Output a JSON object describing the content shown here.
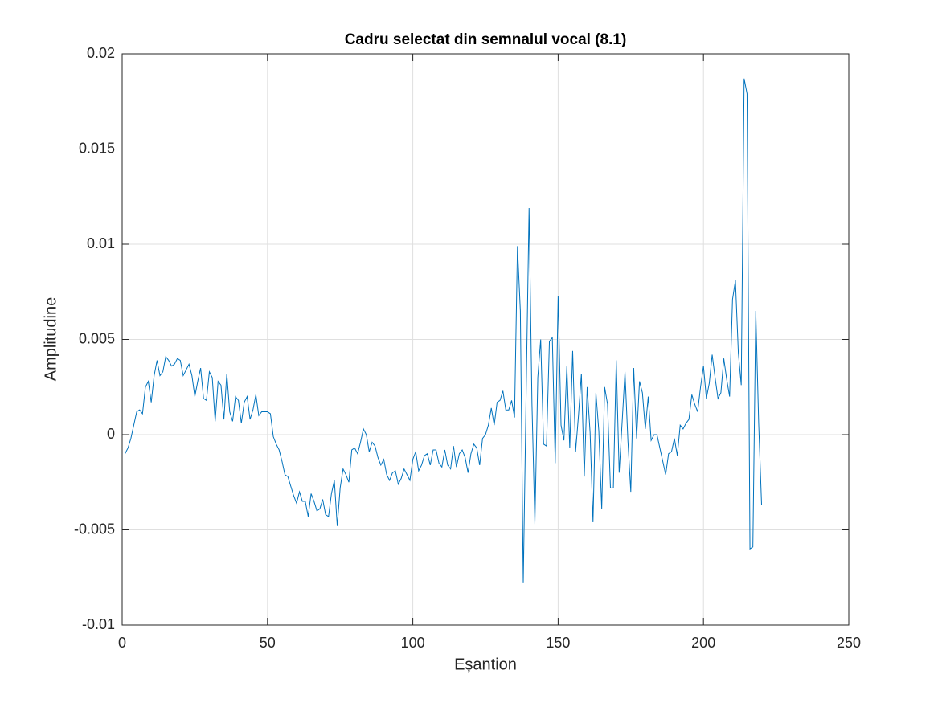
{
  "chart_data": {
    "type": "line",
    "title": "Cadru selectat din semnalul vocal (8.1)",
    "x_label": "Eșantion",
    "y_label": "Amplitudine",
    "x": [
      1,
      2,
      3,
      4,
      5,
      6,
      7,
      8,
      9,
      10,
      11,
      12,
      13,
      14,
      15,
      16,
      17,
      18,
      19,
      20,
      21,
      22,
      23,
      24,
      25,
      26,
      27,
      28,
      29,
      30,
      31,
      32,
      33,
      34,
      35,
      36,
      37,
      38,
      39,
      40,
      41,
      42,
      43,
      44,
      45,
      46,
      47,
      48,
      49,
      50,
      51,
      52,
      53,
      54,
      55,
      56,
      57,
      58,
      59,
      60,
      61,
      62,
      63,
      64,
      65,
      66,
      67,
      68,
      69,
      70,
      71,
      72,
      73,
      74,
      75,
      76,
      77,
      78,
      79,
      80,
      81,
      82,
      83,
      84,
      85,
      86,
      87,
      88,
      89,
      90,
      91,
      92,
      93,
      94,
      95,
      96,
      97,
      98,
      99,
      100,
      101,
      102,
      103,
      104,
      105,
      106,
      107,
      108,
      109,
      110,
      111,
      112,
      113,
      114,
      115,
      116,
      117,
      118,
      119,
      120,
      121,
      122,
      123,
      124,
      125,
      126,
      127,
      128,
      129,
      130,
      131,
      132,
      133,
      134,
      135,
      136,
      137,
      138,
      139,
      140,
      141,
      142,
      143,
      144,
      145,
      146,
      147,
      148,
      149,
      150,
      151,
      152,
      153,
      154,
      155,
      156,
      157,
      158,
      159,
      160,
      161,
      162,
      163,
      164,
      165,
      166,
      167,
      168,
      169,
      170,
      171,
      172,
      173,
      174,
      175,
      176,
      177,
      178,
      179,
      180,
      181,
      182,
      183,
      184,
      185,
      186,
      187,
      188,
      189,
      190,
      191,
      192,
      193,
      194,
      195,
      196,
      197,
      198,
      199,
      200,
      201,
      202,
      203,
      204,
      205,
      206,
      207,
      208,
      209,
      210,
      211,
      212,
      213,
      214,
      215,
      216,
      217,
      218,
      219,
      220
    ],
    "values": [
      -0.001,
      -0.0007,
      -0.0002,
      0.0005,
      0.0012,
      0.0013,
      0.0011,
      0.0025,
      0.0028,
      0.0017,
      0.0031,
      0.0039,
      0.0031,
      0.0033,
      0.0041,
      0.0039,
      0.0036,
      0.0037,
      0.004,
      0.0039,
      0.0031,
      0.0034,
      0.0037,
      0.0031,
      0.002,
      0.0028,
      0.0035,
      0.0019,
      0.0018,
      0.0033,
      0.003,
      0.0007,
      0.0028,
      0.0026,
      0.0008,
      0.0032,
      0.0012,
      0.0007,
      0.002,
      0.0018,
      0.0006,
      0.0017,
      0.002,
      0.0008,
      0.0013,
      0.0021,
      0.001,
      0.0012,
      0.0012,
      0.0012,
      0.0011,
      -0.0001,
      -0.0005,
      -0.0008,
      -0.0014,
      -0.0021,
      -0.0022,
      -0.0027,
      -0.0032,
      -0.0036,
      -0.003,
      -0.0035,
      -0.0035,
      -0.0043,
      -0.0031,
      -0.0035,
      -0.004,
      -0.0039,
      -0.0034,
      -0.0042,
      -0.0043,
      -0.0031,
      -0.0024,
      -0.0048,
      -0.0028,
      -0.0018,
      -0.0021,
      -0.0025,
      -0.0008,
      -0.0007,
      -0.001,
      -0.0004,
      0.0003,
      0.0,
      -0.0009,
      -0.0004,
      -0.0006,
      -0.0012,
      -0.0016,
      -0.0013,
      -0.0021,
      -0.0024,
      -0.002,
      -0.0019,
      -0.0026,
      -0.0023,
      -0.0018,
      -0.0021,
      -0.0024,
      -0.0013,
      -0.0009,
      -0.0019,
      -0.0016,
      -0.0011,
      -0.001,
      -0.0016,
      -0.0008,
      -0.0008,
      -0.0015,
      -0.0017,
      -0.0008,
      -0.0016,
      -0.0018,
      -0.0006,
      -0.0017,
      -0.001,
      -0.0008,
      -0.0012,
      -0.002,
      -0.001,
      -0.0005,
      -0.0007,
      -0.0016,
      -0.0002,
      0.0,
      0.0005,
      0.0014,
      0.0005,
      0.0017,
      0.0018,
      0.0023,
      0.0013,
      0.0013,
      0.0018,
      0.0009,
      0.0099,
      0.0065,
      -0.0078,
      0.0022,
      0.0119,
      0.0016,
      -0.0047,
      0.003,
      0.005,
      -0.0005,
      -0.0006,
      0.0049,
      0.0051,
      -0.0015,
      0.0073,
      0.0005,
      -0.0003,
      0.0036,
      -0.0007,
      0.0044,
      -0.0009,
      0.001,
      0.0032,
      -0.0022,
      0.0025,
      0.0001,
      -0.0046,
      0.0022,
      0.0002,
      -0.0039,
      0.0025,
      0.0016,
      -0.0028,
      -0.0028,
      0.0039,
      -0.002,
      0.0006,
      0.0033,
      -0.0003,
      -0.003,
      0.0035,
      -0.0002,
      0.0028,
      0.0022,
      0.0003,
      0.002,
      -0.0003,
      0.0,
      0.0,
      -0.0007,
      -0.0014,
      -0.0021,
      -0.001,
      -0.0009,
      -0.0002,
      -0.0011,
      0.0005,
      0.0003,
      0.0006,
      0.0008,
      0.0021,
      0.0016,
      0.0012,
      0.0025,
      0.0036,
      0.0019,
      0.0027,
      0.0042,
      0.003,
      0.0019,
      0.0022,
      0.004,
      0.0029,
      0.002,
      0.0071,
      0.0081,
      0.0043,
      0.0026,
      0.0187,
      0.0179,
      -0.006,
      -0.0059,
      0.0065,
      0.0006,
      -0.0037
    ],
    "color": "#0072bd",
    "xlim": [
      0,
      250
    ],
    "xticks": [
      0,
      50,
      100,
      150,
      200,
      250
    ],
    "ylim": [
      -0.01,
      0.02
    ],
    "yticks": [
      -0.01,
      -0.005,
      0,
      0.005,
      0.01,
      0.015,
      0.02
    ],
    "grid": true
  }
}
